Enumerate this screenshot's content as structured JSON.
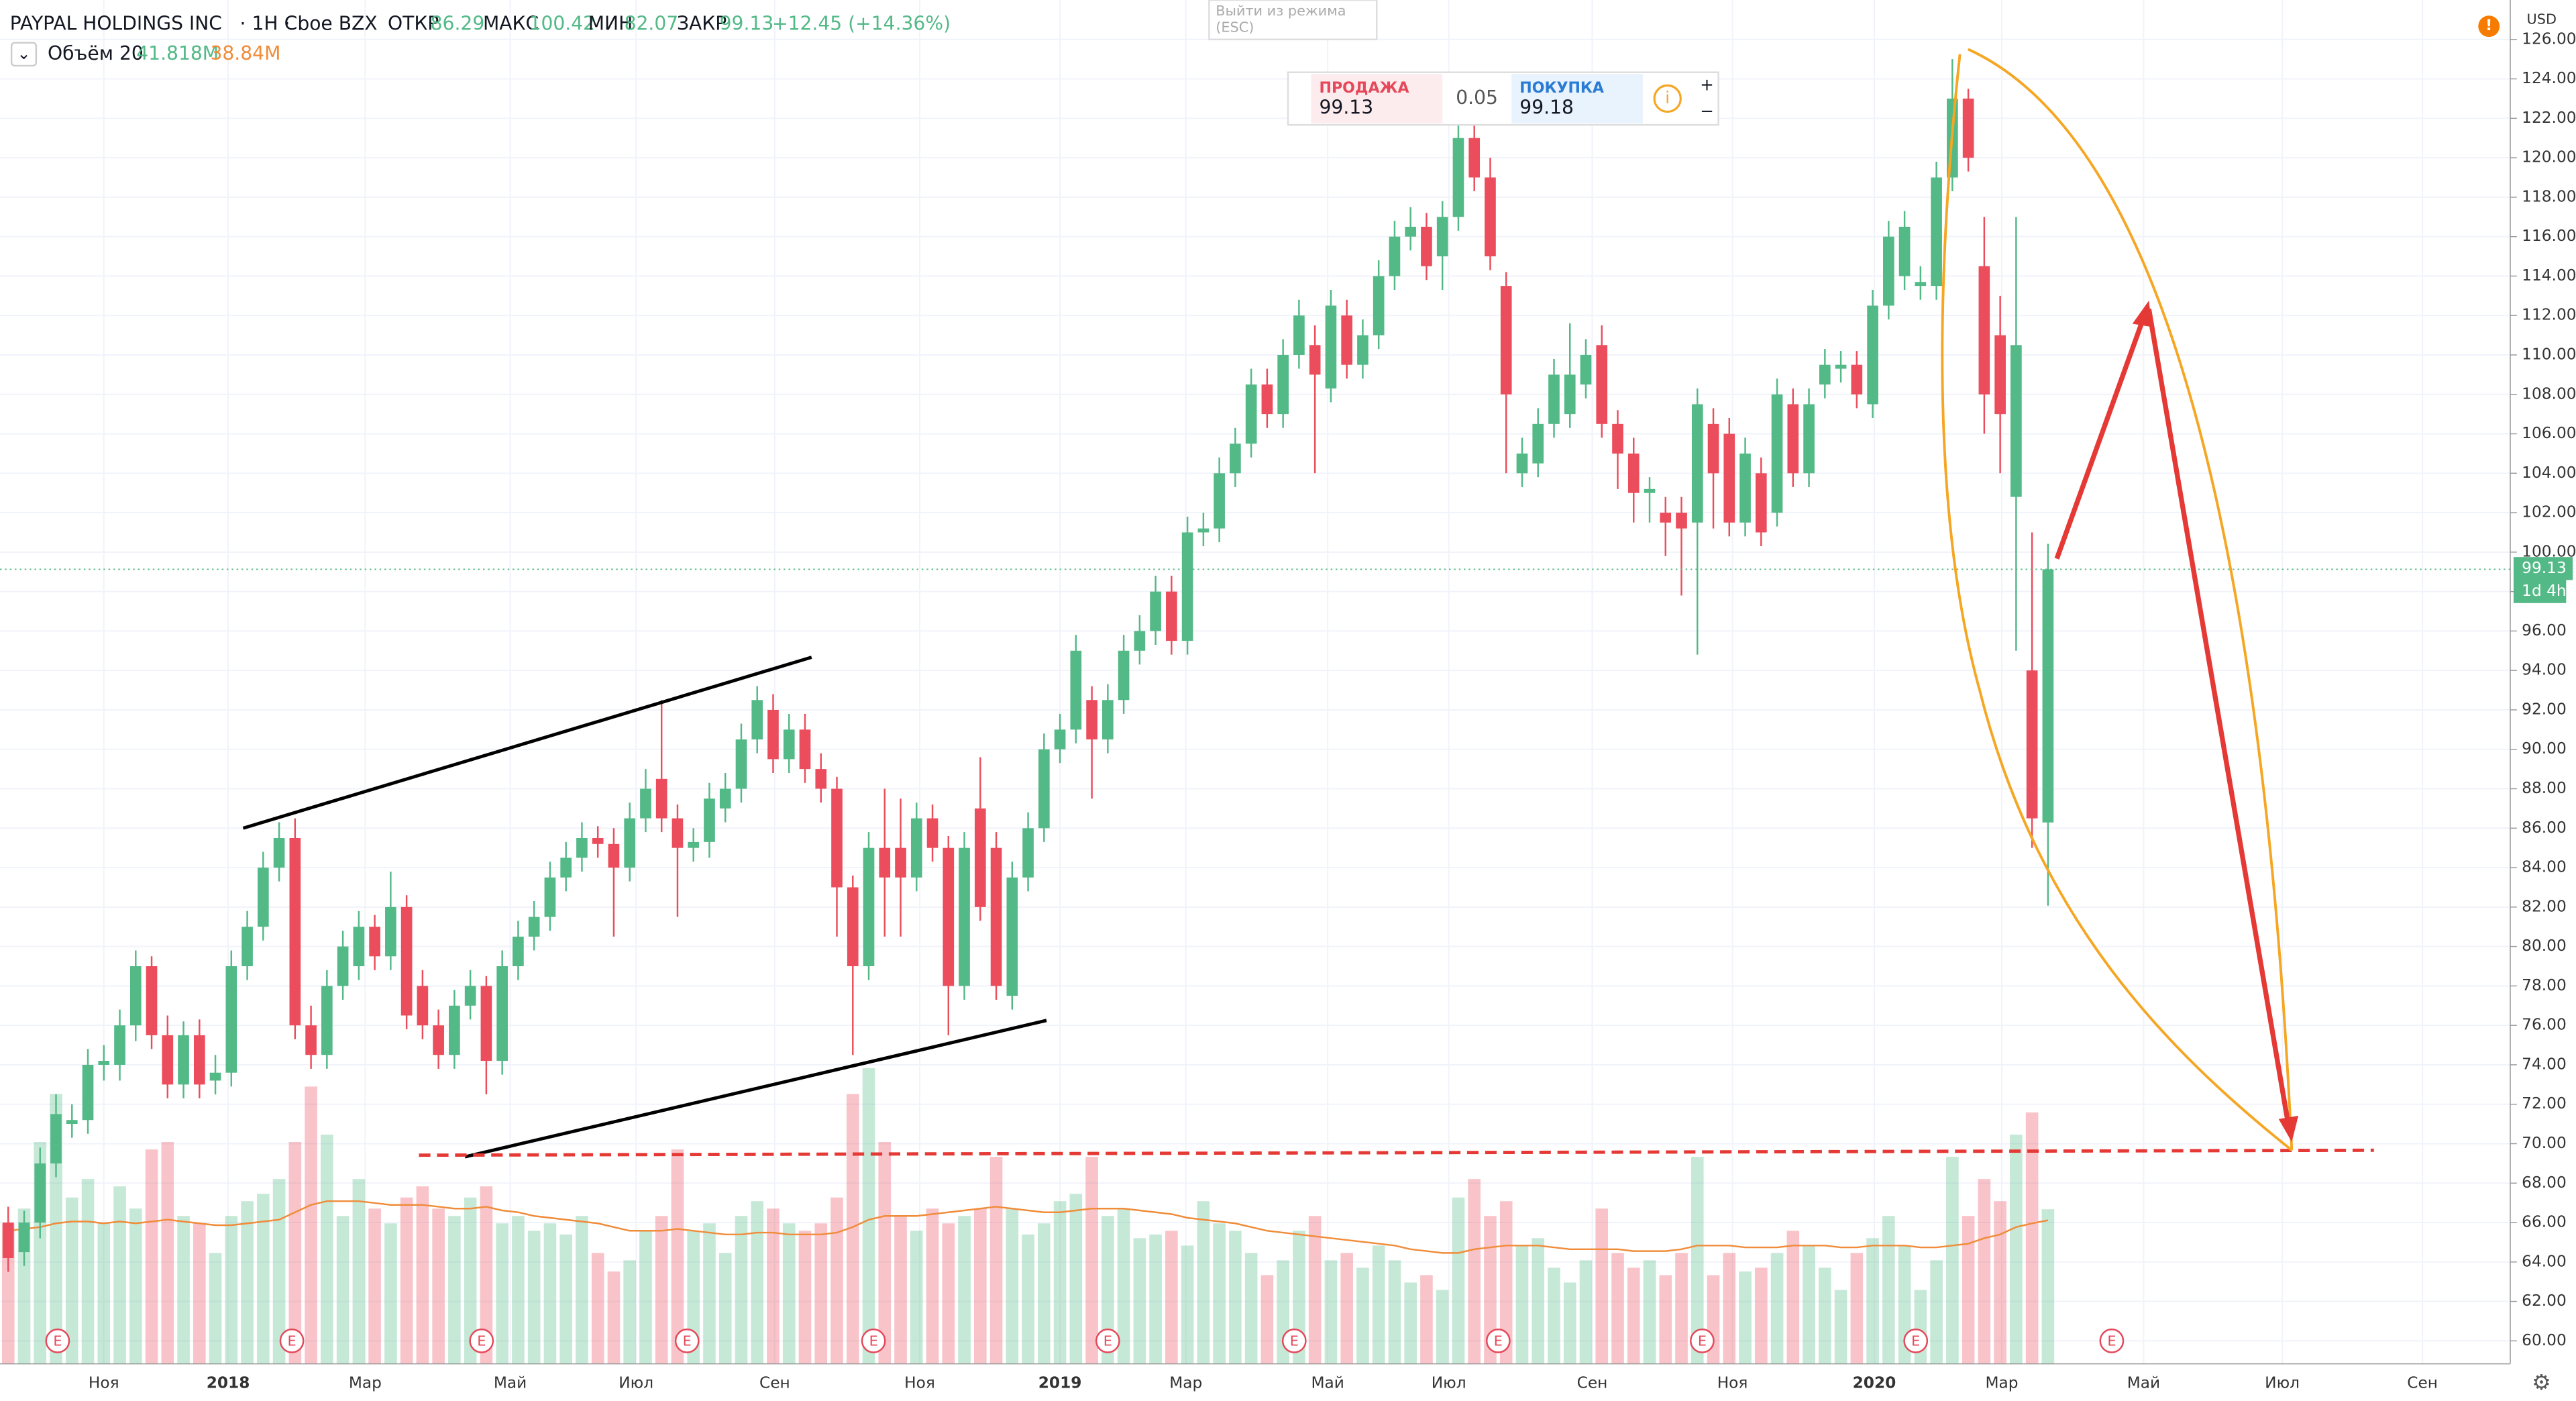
{
  "header": {
    "symbol": "PAYPAL HOLDINGS INC",
    "interval": "· 1H ·",
    "exchange": "Cboe BZX",
    "open_label": "ОТКР",
    "open": 86.29,
    "high_label": "МАКС",
    "high": 100.42,
    "low_label": "МИН",
    "low": 82.07,
    "close_label": "ЗАКР",
    "close": 99.13,
    "change": "+12.45 (+14.36%)",
    "chevron": "⌄",
    "volume_label": "Объём 20",
    "volume_value": "41.818M",
    "volume_ma_value": "38.84M",
    "exit_line1": "Выйти из режима",
    "exit_line2": "(ESC)",
    "alert": "!"
  },
  "trade": {
    "sell_label": "ПРОДАЖА",
    "sell_price": 99.13,
    "spread": 0.05,
    "buy_label": "ПОКУПКА",
    "buy_price": 99.18,
    "info": "i",
    "plus": "+",
    "minus": "−"
  },
  "chart_data": {
    "type": "candlestick",
    "currency": "USD",
    "countdown": "1d 4h",
    "settings_icon": "⚙",
    "up_color": "#53b987",
    "down_color": "#eb4d5c",
    "volume_ma_color": "#f08c3a",
    "price_line_color": "#53b987",
    "ylim": [
      60,
      126
    ],
    "vlim": [
      0,
      80
    ],
    "xlim": [
      -0.5,
      157
    ],
    "yticks": [
      {
        "value": 60,
        "label": "60.00"
      },
      {
        "value": 62,
        "label": "62.00"
      },
      {
        "value": 64,
        "label": "64.00"
      },
      {
        "value": 66,
        "label": "66.00"
      },
      {
        "value": 68,
        "label": "68.00"
      },
      {
        "value": 70,
        "label": "70.00"
      },
      {
        "value": 72,
        "label": "72.00"
      },
      {
        "value": 74,
        "label": "74.00"
      },
      {
        "value": 76,
        "label": "76.00"
      },
      {
        "value": 78,
        "label": "78.00"
      },
      {
        "value": 80,
        "label": "80.00"
      },
      {
        "value": 82,
        "label": "82.00"
      },
      {
        "value": 84,
        "label": "84.00"
      },
      {
        "value": 86,
        "label": "86.00"
      },
      {
        "value": 88,
        "label": "88.00"
      },
      {
        "value": 90,
        "label": "90.00"
      },
      {
        "value": 92,
        "label": "92.00"
      },
      {
        "value": 94,
        "label": "94.00"
      },
      {
        "value": 96,
        "label": "96.00"
      },
      {
        "value": 98,
        "label": "98.00"
      },
      {
        "value": 100,
        "label": "100.00"
      },
      {
        "value": 102,
        "label": "102.00"
      },
      {
        "value": 104,
        "label": "104.00"
      },
      {
        "value": 106,
        "label": "106.00"
      },
      {
        "value": 108,
        "label": "108.00"
      },
      {
        "value": 110,
        "label": "110.00"
      },
      {
        "value": 112,
        "label": "112.00"
      },
      {
        "value": 114,
        "label": "114.00"
      },
      {
        "value": 116,
        "label": "116.00"
      },
      {
        "value": 118,
        "label": "118.00"
      },
      {
        "value": 120,
        "label": "120.00"
      },
      {
        "value": 122,
        "label": "122.00"
      },
      {
        "value": 124,
        "label": "124.00"
      },
      {
        "value": 126,
        "label": "126.00"
      }
    ],
    "xticks": [
      {
        "value": 6.0,
        "label": "Ноя"
      },
      {
        "value": 13.8,
        "label": "2018"
      },
      {
        "value": 22.4,
        "label": "Мар"
      },
      {
        "value": 31.5,
        "label": "Май"
      },
      {
        "value": 39.4,
        "label": "Июл"
      },
      {
        "value": 48.1,
        "label": "Сен"
      },
      {
        "value": 57.2,
        "label": "Ноя"
      },
      {
        "value": 66.0,
        "label": "2019"
      },
      {
        "value": 73.9,
        "label": "Мар"
      },
      {
        "value": 82.8,
        "label": "Май"
      },
      {
        "value": 90.4,
        "label": "Июл"
      },
      {
        "value": 99.4,
        "label": "Сен"
      },
      {
        "value": 108.2,
        "label": "Ноя"
      },
      {
        "value": 117.1,
        "label": "2020"
      },
      {
        "value": 125.1,
        "label": "Мар"
      },
      {
        "value": 134.0,
        "label": "Май"
      },
      {
        "value": 142.7,
        "label": "Июл"
      },
      {
        "value": 151.5,
        "label": "Сен"
      }
    ],
    "earnings": {
      "label": "E",
      "x": [
        3.1,
        17.8,
        29.7,
        42.6,
        54.3,
        69.0,
        80.7,
        93.5,
        106.3,
        119.7,
        132.0
      ]
    },
    "open": [
      66,
      64.5,
      66,
      69,
      71,
      71.2,
      74,
      74,
      76,
      79,
      75.5,
      73,
      75.5,
      73.2,
      73.6,
      79,
      81,
      84,
      85.5,
      76,
      74.5,
      78,
      79,
      81,
      79.5,
      82,
      78,
      76,
      74.5,
      77,
      78,
      74.2,
      79,
      80.5,
      81.5,
      83.5,
      84.5,
      85.5,
      85.2,
      84,
      86.5,
      88.5,
      86.5,
      85,
      85.3,
      87,
      88,
      90.5,
      92,
      89.5,
      91,
      89,
      88,
      83,
      79,
      85,
      85,
      83.5,
      86.5,
      85,
      78,
      87,
      85,
      77.5,
      83.5,
      86,
      90,
      91,
      92.5,
      90.5,
      92.5,
      95,
      96,
      98,
      95.5,
      101,
      101.2,
      104,
      105.5,
      108.5,
      107,
      110,
      110.5,
      108.3,
      112,
      109.5,
      111,
      114,
      116,
      116.5,
      115,
      117,
      121,
      119,
      113.5,
      104,
      104.5,
      106.5,
      107,
      108.5,
      110.5,
      106.5,
      105,
      103,
      102,
      102,
      101.5,
      106.5,
      106,
      101.5,
      104,
      102,
      107.5,
      104,
      108.5,
      109.3,
      109.5,
      107.5,
      112.5,
      114,
      113.5,
      113.5,
      119,
      123,
      114.5,
      111,
      102.8,
      94,
      86.29
    ],
    "high": [
      66.8,
      66.6,
      69.8,
      72.5,
      72,
      74.8,
      75,
      76.8,
      79.8,
      79.5,
      76.5,
      76.2,
      76.3,
      74.5,
      79.8,
      81.8,
      84.8,
      86.3,
      86.5,
      77,
      78.8,
      80.8,
      81.8,
      81.6,
      83.8,
      82.6,
      78.8,
      76.8,
      77.8,
      78.8,
      78.5,
      79.8,
      81.3,
      82.3,
      84.3,
      85.3,
      86.3,
      86.1,
      86,
      87.3,
      89,
      92.5,
      87.2,
      86,
      88.3,
      88.8,
      91.3,
      93.2,
      92.8,
      91.8,
      91.8,
      89.8,
      88.6,
      83.6,
      85.8,
      88,
      87.5,
      87.3,
      87.2,
      85.6,
      85.8,
      89.6,
      85.8,
      84.3,
      86.8,
      90.8,
      91.8,
      95.8,
      93.2,
      93.3,
      95.8,
      96.8,
      98.8,
      98.8,
      101.8,
      102,
      104.8,
      106.3,
      109.3,
      109.3,
      110.8,
      112.8,
      111.5,
      113.3,
      112.8,
      111.8,
      114.8,
      116.8,
      117.5,
      117.2,
      117.8,
      121.8,
      122,
      120,
      114.2,
      105.8,
      107.3,
      109.8,
      111.6,
      110.8,
      111.5,
      107.2,
      105.8,
      103.8,
      102.8,
      102.8,
      108.3,
      107.3,
      106.8,
      105.8,
      104.8,
      108.8,
      108.3,
      108.3,
      110.3,
      110.2,
      110.2,
      113.3,
      116.8,
      117.3,
      114.5,
      119.8,
      125,
      123.5,
      117,
      113,
      117,
      101,
      100.42
    ],
    "low": [
      63.5,
      63.8,
      65.2,
      68.3,
      70.3,
      70.5,
      73.2,
      73.2,
      75.2,
      74.8,
      72.3,
      72.3,
      72.3,
      72.5,
      72.9,
      78.3,
      80.3,
      83.3,
      75.3,
      73.8,
      73.8,
      77.3,
      78.3,
      78.8,
      78.8,
      75.8,
      75.3,
      73.8,
      73.8,
      76.3,
      72.5,
      73.5,
      78.3,
      79.8,
      80.8,
      82.8,
      83.8,
      84.5,
      80.5,
      83.3,
      85.8,
      85.8,
      81.5,
      84.3,
      84.5,
      86.3,
      87.3,
      89.8,
      88.8,
      88.8,
      88.3,
      87.3,
      80.5,
      74.5,
      78.3,
      80.5,
      80.5,
      82.8,
      84.3,
      75.5,
      77.3,
      81.3,
      77.3,
      76.8,
      82.8,
      85.3,
      89.3,
      90.3,
      87.5,
      89.8,
      91.8,
      94.3,
      95.3,
      94.8,
      94.8,
      100.3,
      100.5,
      103.3,
      104.8,
      106.3,
      106.3,
      109.3,
      104,
      107.6,
      108.8,
      108.8,
      110.3,
      113.3,
      115.3,
      113.8,
      113.3,
      116.3,
      118.3,
      114.3,
      104,
      103.3,
      103.8,
      105.8,
      106.3,
      107.8,
      105.8,
      103.2,
      101.5,
      101.5,
      99.8,
      97.8,
      94.8,
      101.2,
      100.8,
      100.8,
      100.3,
      101.3,
      103.3,
      103.3,
      107.8,
      108.6,
      107.3,
      106.8,
      111.8,
      113.3,
      112.8,
      112.8,
      118.3,
      119.3,
      106,
      104,
      95,
      85,
      82.07
    ],
    "close": [
      64.2,
      66,
      69,
      71.5,
      71.2,
      74,
      74.2,
      76,
      79,
      75.5,
      73,
      75.5,
      73,
      73.6,
      79,
      81,
      84,
      85.5,
      76,
      74.5,
      78,
      80,
      81,
      79.5,
      82,
      76.5,
      76,
      74.5,
      77,
      78,
      74.2,
      79,
      80.5,
      81.5,
      83.5,
      84.5,
      85.5,
      85.2,
      84,
      86.5,
      88,
      86.5,
      85,
      85.3,
      87.5,
      88,
      90.5,
      92.5,
      89.5,
      91,
      89,
      88,
      83,
      79,
      85,
      83.5,
      83.5,
      86.5,
      85,
      78,
      85,
      82,
      78,
      83.5,
      86,
      90,
      91,
      95,
      90.5,
      92.5,
      95,
      96,
      98,
      95.5,
      101,
      101.2,
      104,
      105.5,
      108.5,
      107,
      110,
      112,
      109,
      112.5,
      109.5,
      111,
      114,
      116,
      116.5,
      114.5,
      117,
      121,
      119,
      115,
      108,
      105,
      106.5,
      109,
      109,
      110,
      106.5,
      105,
      103,
      103.2,
      101.5,
      101.2,
      107.5,
      104,
      101.5,
      105,
      101,
      108,
      104,
      107.5,
      109.5,
      109.5,
      108,
      112.5,
      116,
      116.5,
      113.7,
      119,
      123,
      120,
      108,
      107,
      110.5,
      86.5,
      99.13
    ],
    "volume": [
      38,
      42,
      60,
      73,
      45,
      50,
      38,
      48,
      42,
      58,
      60,
      40,
      38,
      30,
      40,
      44,
      46,
      50,
      60,
      75,
      62,
      40,
      50,
      42,
      38,
      45,
      48,
      42,
      40,
      45,
      48,
      38,
      40,
      36,
      38,
      35,
      40,
      30,
      25,
      28,
      36,
      40,
      58,
      36,
      38,
      30,
      40,
      44,
      42,
      38,
      36,
      38,
      45,
      73,
      80,
      60,
      40,
      36,
      42,
      38,
      40,
      42,
      56,
      42,
      35,
      38,
      44,
      46,
      56,
      40,
      42,
      34,
      35,
      36,
      32,
      44,
      38,
      36,
      30,
      24,
      28,
      36,
      40,
      28,
      30,
      26,
      32,
      28,
      22,
      24,
      20,
      45,
      50,
      40,
      44,
      32,
      34,
      26,
      22,
      28,
      42,
      30,
      26,
      28,
      24,
      30,
      56,
      24,
      30,
      25,
      26,
      30,
      36,
      32,
      26,
      20,
      30,
      34,
      40,
      32,
      20,
      28,
      56,
      40,
      50,
      44,
      62,
      68,
      41.818
    ],
    "volume_ma": [
      36,
      36.5,
      37,
      38,
      38.5,
      38.5,
      38,
      38.5,
      38,
      38.5,
      39,
      38.5,
      38,
      37.5,
      37.5,
      38,
      38.5,
      39,
      41,
      43,
      44,
      44,
      44,
      43.5,
      43,
      43,
      43,
      42.5,
      42,
      42,
      42.5,
      41.5,
      41,
      40,
      39.5,
      39,
      38.5,
      38,
      37,
      36,
      36,
      36,
      36.5,
      36,
      35.5,
      35,
      35,
      35.5,
      35.5,
      35,
      35,
      35,
      35.5,
      37,
      39,
      40,
      40,
      40,
      40.5,
      41,
      41.5,
      42,
      42.5,
      42,
      41.5,
      41,
      41,
      41.5,
      42,
      42,
      42,
      41.5,
      41,
      40.5,
      39.5,
      39,
      38.5,
      38,
      37,
      36,
      35.5,
      35,
      34.5,
      34,
      33.5,
      33,
      32.5,
      32,
      31,
      30.5,
      30,
      30,
      31,
      31.5,
      32,
      32,
      32,
      31.5,
      31,
      31,
      31,
      31,
      30.5,
      30.5,
      30.5,
      31,
      32,
      32,
      32,
      31.5,
      31.5,
      31.5,
      32,
      32,
      32,
      31.5,
      31.5,
      32,
      32,
      32,
      31.5,
      31.5,
      32,
      32.5,
      34,
      35,
      37,
      38,
      38.84
    ]
  }
}
